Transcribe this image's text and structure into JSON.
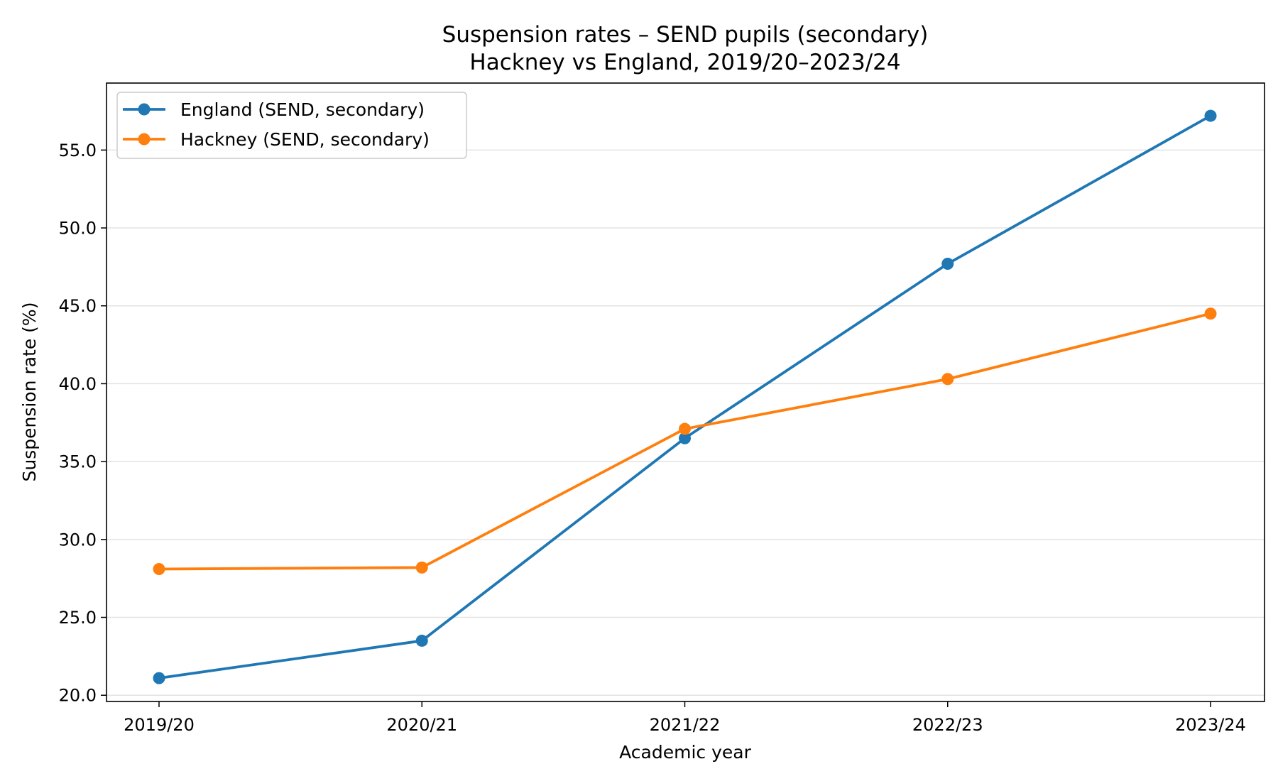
{
  "chart_data": {
    "type": "line",
    "title": "Suspension rates – SEND pupils (secondary)",
    "subtitle": "Hackney vs England, 2019/20–2023/24",
    "xlabel": "Academic year",
    "ylabel": "Suspension rate (%)",
    "categories": [
      "2019/20",
      "2020/21",
      "2021/22",
      "2022/23",
      "2023/24"
    ],
    "ylim": [
      19.6,
      59.3
    ],
    "yticks": [
      20.0,
      25.0,
      30.0,
      35.0,
      40.0,
      45.0,
      50.0,
      55.0
    ],
    "ytick_labels": [
      "20.0",
      "25.0",
      "30.0",
      "35.0",
      "40.0",
      "45.0",
      "50.0",
      "55.0"
    ],
    "grid": "horizontal",
    "legend_position": "top-left",
    "series": [
      {
        "name": "England (SEND, secondary)",
        "color": "#1f77b4",
        "values": [
          21.1,
          23.5,
          36.5,
          47.7,
          57.2
        ]
      },
      {
        "name": "Hackney (SEND, secondary)",
        "color": "#ff7f0e",
        "values": [
          28.1,
          28.2,
          37.1,
          40.3,
          44.5
        ]
      }
    ]
  }
}
